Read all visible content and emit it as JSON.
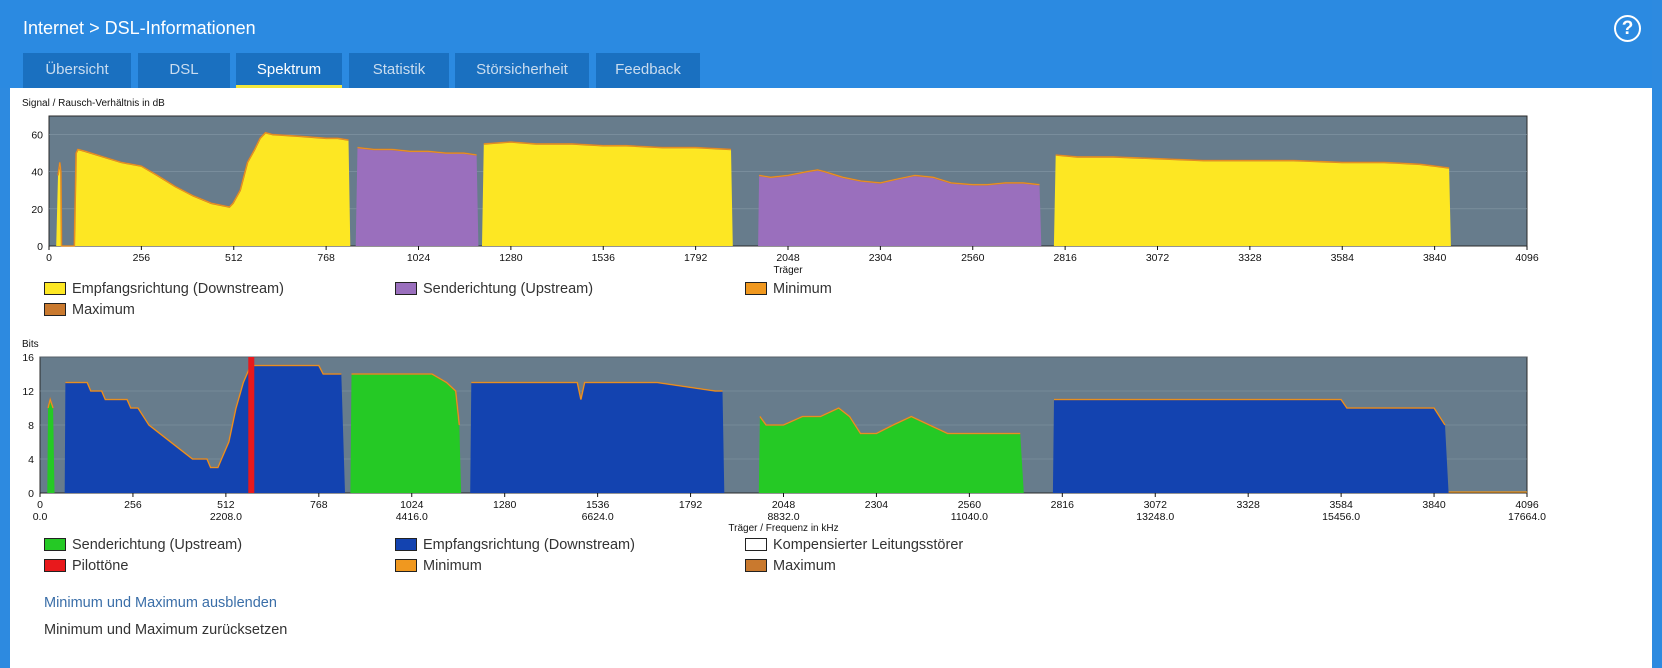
{
  "header": {
    "breadcrumb_parent": "Internet",
    "breadcrumb_separator": ">",
    "breadcrumb_current": "DSL-Informationen",
    "help_label": "?"
  },
  "tabs": [
    {
      "label": "Übersicht",
      "active": false
    },
    {
      "label": "DSL",
      "active": false
    },
    {
      "label": "Spektrum",
      "active": true
    },
    {
      "label": "Statistik",
      "active": false
    },
    {
      "label": "Störsicherheit",
      "active": false
    },
    {
      "label": "Feedback",
      "active": false
    }
  ],
  "colors": {
    "plot_bg": "#677c8c",
    "downstream_snr": "#fde723",
    "upstream_snr": "#9a6fbd",
    "minimum": "#f0981f",
    "maximum": "#c9792e",
    "upstream_bits": "#25c925",
    "downstream_bits": "#1343b0",
    "pilot": "#e8191c",
    "compensated": "#ffffff"
  },
  "chart_data": [
    {
      "type": "area",
      "title": "Signal / Rausch-Verhältnis in dB",
      "xlabel": "Träger",
      "ylabel": "",
      "xlim": [
        0,
        4096
      ],
      "ylim": [
        0,
        70
      ],
      "xticks": [
        0,
        256,
        512,
        768,
        1024,
        1280,
        1536,
        1792,
        2048,
        2304,
        2560,
        2816,
        3072,
        3328,
        3584,
        3840,
        4096
      ],
      "yticks": [
        0,
        20,
        40,
        60
      ],
      "grid": true,
      "legend_position": "bottom",
      "series": [
        {
          "name": "Empfangsrichtung (Downstream)",
          "color": "#fde723",
          "points": [
            [
              20,
              0
            ],
            [
              25,
              38
            ],
            [
              30,
              45
            ],
            [
              33,
              40
            ],
            [
              35,
              0
            ],
            [
              70,
              0
            ],
            [
              75,
              50
            ],
            [
              80,
              52
            ],
            [
              100,
              51
            ],
            [
              150,
              48
            ],
            [
              200,
              45
            ],
            [
              256,
              43
            ],
            [
              300,
              38
            ],
            [
              350,
              32
            ],
            [
              400,
              27
            ],
            [
              450,
              23
            ],
            [
              500,
              21
            ],
            [
              510,
              23
            ],
            [
              530,
              30
            ],
            [
              550,
              45
            ],
            [
              570,
              52
            ],
            [
              585,
              58
            ],
            [
              600,
              61
            ],
            [
              620,
              60
            ],
            [
              700,
              59
            ],
            [
              768,
              58
            ],
            [
              800,
              58
            ],
            [
              830,
              57
            ],
            [
              835,
              0
            ]
          ]
        },
        {
          "name": "Senderichtung (Upstream)",
          "color": "#9a6fbd",
          "points": [
            [
              850,
              0
            ],
            [
              855,
              53
            ],
            [
              900,
              52
            ],
            [
              950,
              52
            ],
            [
              1000,
              51
            ],
            [
              1050,
              51
            ],
            [
              1100,
              50
            ],
            [
              1150,
              50
            ],
            [
              1185,
              49
            ],
            [
              1190,
              0
            ]
          ]
        },
        {
          "name": "Empfangsrichtung (Downstream)",
          "color": "#fde723",
          "points": [
            [
              1200,
              0
            ],
            [
              1205,
              55
            ],
            [
              1280,
              56
            ],
            [
              1350,
              55
            ],
            [
              1400,
              55
            ],
            [
              1450,
              55
            ],
            [
              1536,
              54
            ],
            [
              1600,
              54
            ],
            [
              1700,
              53
            ],
            [
              1792,
              53
            ],
            [
              1890,
              52
            ],
            [
              1895,
              0
            ]
          ]
        },
        {
          "name": "Senderichtung (Upstream)",
          "color": "#9a6fbd",
          "points": [
            [
              1965,
              0
            ],
            [
              1968,
              38
            ],
            [
              2000,
              37
            ],
            [
              2048,
              38
            ],
            [
              2100,
              40
            ],
            [
              2130,
              41
            ],
            [
              2150,
              40
            ],
            [
              2200,
              37
            ],
            [
              2250,
              35
            ],
            [
              2304,
              34
            ],
            [
              2350,
              36
            ],
            [
              2400,
              38
            ],
            [
              2450,
              37
            ],
            [
              2500,
              34
            ],
            [
              2560,
              33
            ],
            [
              2600,
              33
            ],
            [
              2650,
              34
            ],
            [
              2700,
              34
            ],
            [
              2745,
              33
            ],
            [
              2750,
              0
            ]
          ]
        },
        {
          "name": "Empfangsrichtung (Downstream)",
          "color": "#fde723",
          "points": [
            [
              2785,
              0
            ],
            [
              2790,
              49
            ],
            [
              2850,
              48
            ],
            [
              2950,
              48
            ],
            [
              3072,
              47
            ],
            [
              3200,
              46
            ],
            [
              3328,
              46
            ],
            [
              3450,
              46
            ],
            [
              3584,
              45
            ],
            [
              3700,
              45
            ],
            [
              3800,
              44
            ],
            [
              3840,
              43
            ],
            [
              3880,
              42
            ],
            [
              3885,
              0
            ]
          ]
        }
      ]
    },
    {
      "type": "area",
      "title": "Bits",
      "xlabel": "Träger / Frequenz in kHz",
      "ylabel": "",
      "xlim": [
        0,
        4096
      ],
      "ylim": [
        0,
        16
      ],
      "xticks": [
        0,
        256,
        512,
        768,
        1024,
        1280,
        1536,
        1792,
        2048,
        2304,
        2560,
        2816,
        3072,
        3328,
        3584,
        3840,
        4096
      ],
      "xticks_secondary": [
        "0.0",
        "2208.0",
        "4416.0",
        "6624.0",
        "8832.0",
        "11040.0",
        "13248.0",
        "15456.0",
        "17664.0"
      ],
      "yticks": [
        0,
        4,
        8,
        12,
        16
      ],
      "grid": true,
      "legend_position": "bottom",
      "series": [
        {
          "name": "Senderichtung (Upstream)",
          "color": "#25c925",
          "points": [
            [
              20,
              0
            ],
            [
              22,
              10
            ],
            [
              28,
              11
            ],
            [
              36,
              10
            ],
            [
              40,
              0
            ]
          ]
        },
        {
          "name": "Empfangsrichtung (Downstream)",
          "color": "#1343b0",
          "points": [
            [
              68,
              0
            ],
            [
              70,
              13
            ],
            [
              130,
              13
            ],
            [
              140,
              12
            ],
            [
              170,
              12
            ],
            [
              180,
              11
            ],
            [
              240,
              11
            ],
            [
              250,
              10
            ],
            [
              270,
              10
            ],
            [
              300,
              8
            ],
            [
              330,
              7
            ],
            [
              360,
              6
            ],
            [
              390,
              5
            ],
            [
              420,
              4
            ],
            [
              460,
              4
            ],
            [
              470,
              3
            ],
            [
              490,
              3
            ],
            [
              500,
              4
            ],
            [
              520,
              6
            ],
            [
              540,
              10
            ],
            [
              560,
              13
            ],
            [
              580,
              15
            ],
            [
              768,
              15
            ],
            [
              780,
              14
            ],
            [
              830,
              14
            ],
            [
              840,
              0
            ]
          ]
        },
        {
          "name": "Senderichtung (Upstream)",
          "color": "#25c925",
          "points": [
            [
              855,
              0
            ],
            [
              858,
              14
            ],
            [
              950,
              14
            ],
            [
              1080,
              14
            ],
            [
              1120,
              13
            ],
            [
              1145,
              12
            ],
            [
              1155,
              8
            ],
            [
              1160,
              0
            ]
          ]
        },
        {
          "name": "Empfangsrichtung (Downstream)",
          "color": "#1343b0",
          "points": [
            [
              1185,
              0
            ],
            [
              1188,
              13
            ],
            [
              1280,
              13
            ],
            [
              1480,
              13
            ],
            [
              1490,
              11
            ],
            [
              1500,
              13
            ],
            [
              1700,
              13
            ],
            [
              1860,
              12
            ],
            [
              1880,
              12
            ],
            [
              1885,
              0
            ]
          ]
        },
        {
          "name": "Senderichtung (Upstream)",
          "color": "#25c925",
          "points": [
            [
              1980,
              0
            ],
            [
              1983,
              9
            ],
            [
              2000,
              8
            ],
            [
              2048,
              8
            ],
            [
              2100,
              9
            ],
            [
              2150,
              9
            ],
            [
              2200,
              10
            ],
            [
              2230,
              9
            ],
            [
              2260,
              7
            ],
            [
              2304,
              7
            ],
            [
              2350,
              8
            ],
            [
              2400,
              9
            ],
            [
              2450,
              8
            ],
            [
              2500,
              7
            ],
            [
              2560,
              7
            ],
            [
              2650,
              7
            ],
            [
              2700,
              7
            ],
            [
              2710,
              0
            ]
          ]
        },
        {
          "name": "Empfangsrichtung (Downstream)",
          "color": "#1343b0",
          "points": [
            [
              2790,
              0
            ],
            [
              2793,
              11
            ],
            [
              2900,
              11
            ],
            [
              3072,
              11
            ],
            [
              3328,
              11
            ],
            [
              3584,
              11
            ],
            [
              3600,
              10
            ],
            [
              3700,
              10
            ],
            [
              3840,
              10
            ],
            [
              3870,
              8
            ],
            [
              3880,
              0
            ]
          ]
        }
      ],
      "pilot_tones": [
        582
      ],
      "pilot_tone_name": "Pilottöne"
    }
  ],
  "legend1": [
    {
      "label": "Empfangsrichtung (Downstream)",
      "color": "#fde723"
    },
    {
      "label": "Senderichtung (Upstream)",
      "color": "#9a6fbd"
    },
    {
      "label": "Minimum",
      "color": "#f0981f"
    },
    {
      "label": "Maximum",
      "color": "#c9792e"
    }
  ],
  "legend2": [
    {
      "label": "Senderichtung (Upstream)",
      "color": "#25c925"
    },
    {
      "label": "Empfangsrichtung (Downstream)",
      "color": "#1343b0"
    },
    {
      "label": "Kompensierter Leitungsstörer",
      "color": "#ffffff"
    },
    {
      "label": "Pilottöne",
      "color": "#e8191c"
    },
    {
      "label": "Minimum",
      "color": "#f0981f"
    },
    {
      "label": "Maximum",
      "color": "#c9792e"
    }
  ],
  "links": {
    "toggle_minmax": "Minimum und Maximum ausblenden",
    "reset_minmax": "Minimum und Maximum zurücksetzen"
  }
}
